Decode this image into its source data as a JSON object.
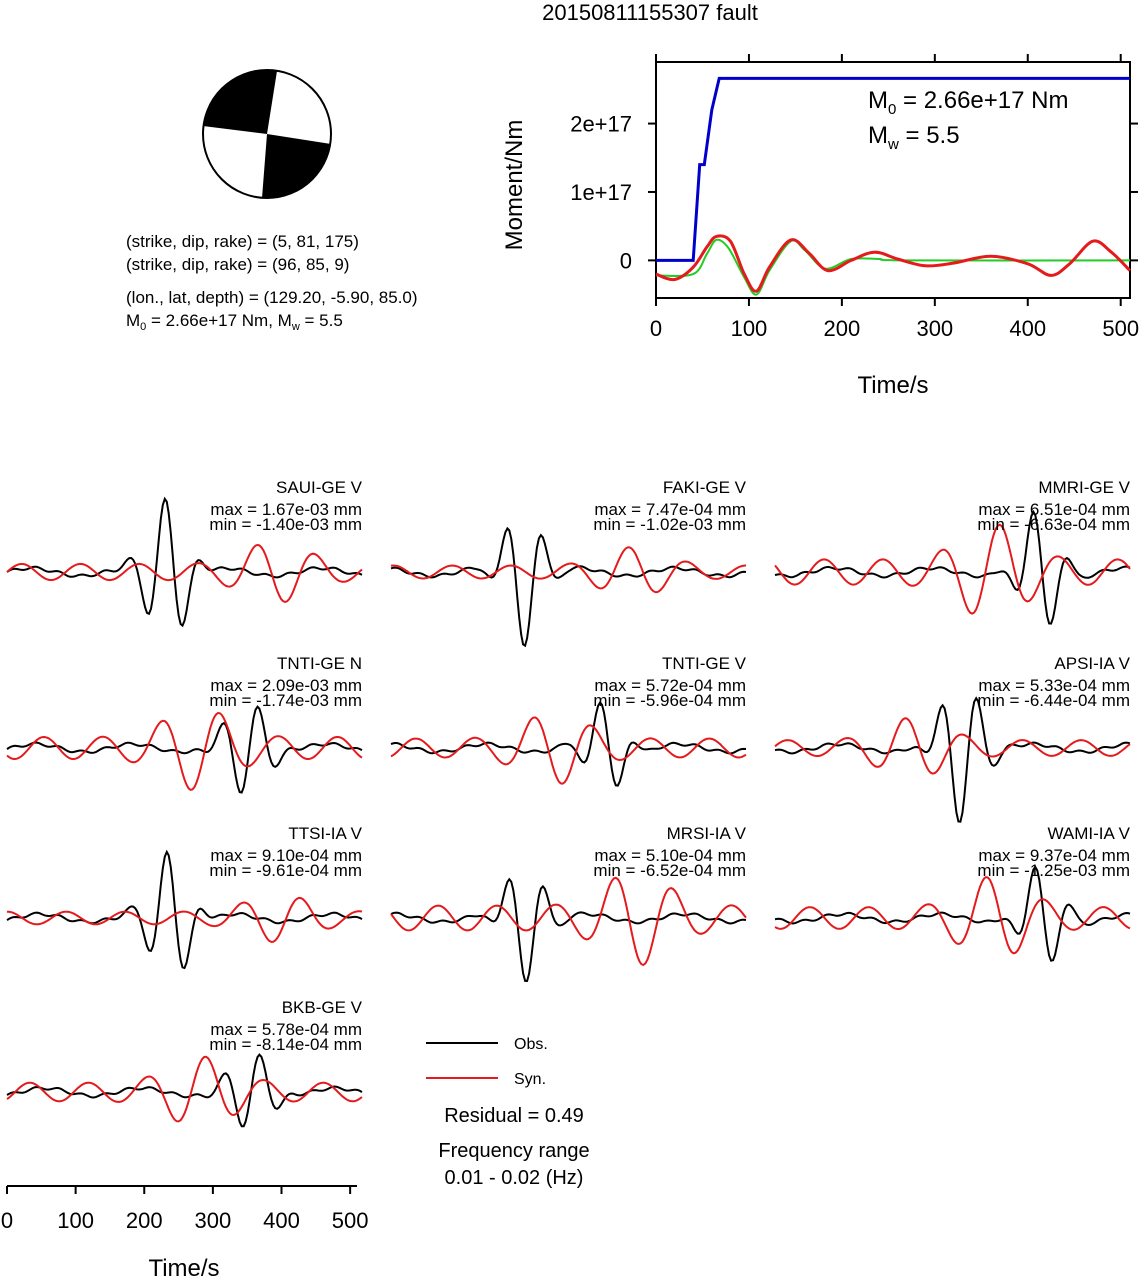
{
  "title": "20150811155307 fault",
  "mechanism": {
    "line1": "(strike, dip, rake) = (5, 81, 175)",
    "line2": "(strike, dip, rake) = (96, 85, 9)",
    "line3": "(lon., lat, depth) = (129.20, -5.90, 85.0)",
    "line4_m0": "2.66e+17 Nm",
    "line4_mw": "5.5"
  },
  "colors": {
    "obs": "#000000",
    "syn": "#e41a1c",
    "moment": "#0000cc",
    "stf": "#22cc22",
    "stf_red": "#e41a1c"
  },
  "legend": {
    "obs": "Obs.",
    "syn": "Syn.",
    "residual": "Residual = 0.49",
    "freq_label": "Frequency range",
    "freq_value": "0.01 - 0.02 (Hz)"
  },
  "chart_data": [
    {
      "type": "line",
      "name": "moment-rate",
      "xlabel": "Time/s",
      "ylabel": "Moment/Nm",
      "xlim": [
        0,
        510
      ],
      "ylim": [
        -5.5e+16,
        2.9e+17
      ],
      "xticks": [
        0,
        100,
        200,
        300,
        400,
        500
      ],
      "yticks": [
        0,
        1e+17,
        2e+17
      ],
      "ytick_labels": [
        "0",
        "1e+17",
        "2e+17"
      ],
      "annotation_m0": "2.66e+17 Nm",
      "annotation_mw": "5.5",
      "series": [
        {
          "color": "blue",
          "x": [
            0,
            40,
            47,
            52,
            52,
            60,
            68,
            68,
            510
          ],
          "y": [
            0,
            0,
            1.4e+17,
            1.4e+17,
            1.4e+17,
            2.2e+17,
            2.66e+17,
            2.66e+17,
            2.66e+17
          ]
        },
        {
          "color": "green",
          "x": [
            0,
            40,
            55,
            65,
            78,
            95,
            108,
            122,
            145,
            160,
            182,
            210,
            240,
            270,
            510
          ],
          "y": [
            -2.2e+16,
            -2e+16,
            1e+16,
            3e+16,
            1.8e+16,
            -2.5e+16,
            -5e+16,
            -1.5e+16,
            2.8e+16,
            1.5e+16,
            -1.2e+16,
            2000000000000000.0,
            2000000000000000.0,
            0,
            0
          ]
        },
        {
          "color": "red",
          "x": [
            0,
            20,
            40,
            55,
            65,
            80,
            95,
            108,
            122,
            145,
            165,
            185,
            210,
            235,
            260,
            290,
            320,
            360,
            400,
            425,
            445,
            470,
            490,
            510
          ],
          "y": [
            -2e+16,
            -2.8e+16,
            -1e+16,
            2e+16,
            3.5e+16,
            2.8e+16,
            -2e+16,
            -4.5e+16,
            -1e+16,
            3e+16,
            1e+16,
            -1.5e+16,
            0,
            1.2e+16,
            2000000000000000.0,
            -8000000000000000.0,
            -4000000000000000.0,
            6000000000000000.0,
            -5000000000000000.0,
            -2.2e+16,
            -5000000000000000.0,
            2.8e+16,
            1.2e+16,
            -1.5e+16
          ]
        }
      ]
    },
    {
      "type": "line",
      "name": "waveforms",
      "xlabel": "Time/s",
      "xlim": [
        0,
        510
      ],
      "xticks": [
        0,
        100,
        200,
        300,
        400,
        500
      ],
      "panels": [
        {
          "label": "SAUI-GE V",
          "max": "max = 1.67e-03 mm",
          "min": "min = -1.40e-03 mm"
        },
        {
          "label": "FAKI-GE V",
          "max": "max = 7.47e-04 mm",
          "min": "min = -1.02e-03 mm"
        },
        {
          "label": "MMRI-GE V",
          "max": "max = 6.51e-04 mm",
          "min": "min = -6.63e-04 mm"
        },
        {
          "label": "TNTI-GE N",
          "max": "max = 2.09e-03 mm",
          "min": "min = -1.74e-03 mm"
        },
        {
          "label": "TNTI-GE V",
          "max": "max = 5.72e-04 mm",
          "min": "min = -5.96e-04 mm"
        },
        {
          "label": "APSI-IA V",
          "max": "max = 5.33e-04 mm",
          "min": "min = -6.44e-04 mm"
        },
        {
          "label": "TTSI-IA V",
          "max": "max = 9.10e-04 mm",
          "min": "min = -9.61e-04 mm"
        },
        {
          "label": "MRSI-IA V",
          "max": "max = 5.10e-04 mm",
          "min": "min = -6.52e-04 mm"
        },
        {
          "label": "WAMI-IA V",
          "max": "max = 9.37e-04 mm",
          "min": "min = -1.25e-03 mm"
        },
        {
          "label": "BKB-GE V",
          "max": "max = 5.78e-04 mm",
          "min": "min = -8.14e-04 mm"
        }
      ]
    }
  ]
}
